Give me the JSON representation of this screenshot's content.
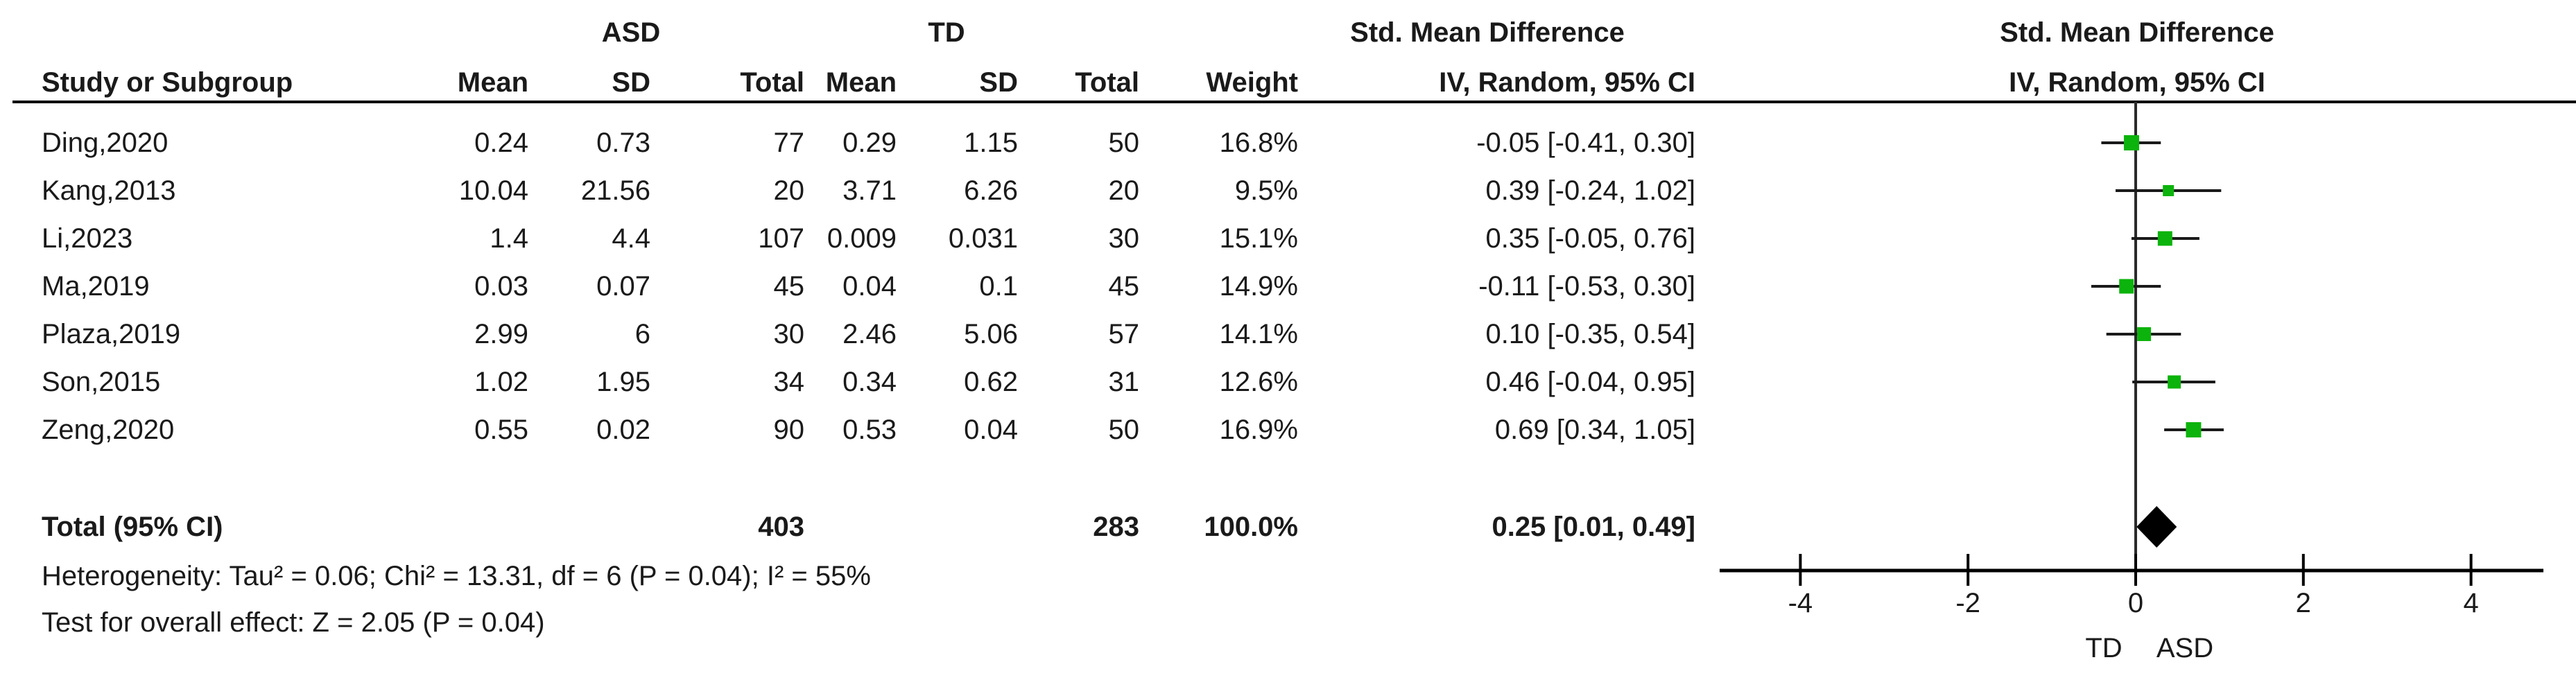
{
  "meta": {
    "background": "#ffffff",
    "text_color": "#1a1a1a",
    "marker_green": "#0cb30c",
    "line_black": "#1a1a1a"
  },
  "header": {
    "study_col": "Study or Subgroup",
    "group1_label": "ASD",
    "group2_label": "TD",
    "sub_cols": {
      "mean": "Mean",
      "sd": "SD",
      "total": "Total",
      "weight": "Weight"
    },
    "effect_col_title": "Std. Mean Difference",
    "effect_col_sub": "IV, Random, 95% CI",
    "plot_col_title": "Std. Mean Difference",
    "plot_col_sub": "IV, Random, 95% CI"
  },
  "table": {
    "rows": [
      {
        "study": "Ding,2020",
        "mean1": "0.24",
        "sd1": "0.73",
        "total1": "77",
        "mean2": "0.29",
        "sd2": "1.15",
        "total2": "50",
        "weight": "16.8%",
        "ci": "-0.05 [-0.41, 0.30]"
      },
      {
        "study": "Kang,2013",
        "mean1": "10.04",
        "sd1": "21.56",
        "total1": "20",
        "mean2": "3.71",
        "sd2": "6.26",
        "total2": "20",
        "weight": "9.5%",
        "ci": "0.39 [-0.24, 1.02]"
      },
      {
        "study": "Li,2023",
        "mean1": "1.4",
        "sd1": "4.4",
        "total1": "107",
        "mean2": "0.009",
        "sd2": "0.031",
        "total2": "30",
        "weight": "15.1%",
        "ci": "0.35 [-0.05, 0.76]"
      },
      {
        "study": "Ma,2019",
        "mean1": "0.03",
        "sd1": "0.07",
        "total1": "45",
        "mean2": "0.04",
        "sd2": "0.1",
        "total2": "45",
        "weight": "14.9%",
        "ci": "-0.11 [-0.53, 0.30]"
      },
      {
        "study": "Plaza,2019",
        "mean1": "2.99",
        "sd1": "6",
        "total1": "30",
        "mean2": "2.46",
        "sd2": "5.06",
        "total2": "57",
        "weight": "14.1%",
        "ci": "0.10 [-0.35, 0.54]"
      },
      {
        "study": "Son,2015",
        "mean1": "1.02",
        "sd1": "1.95",
        "total1": "34",
        "mean2": "0.34",
        "sd2": "0.62",
        "total2": "31",
        "weight": "12.6%",
        "ci": "0.46 [-0.04, 0.95]"
      },
      {
        "study": "Zeng,2020",
        "mean1": "0.55",
        "sd1": "0.02",
        "total1": "90",
        "mean2": "0.53",
        "sd2": "0.04",
        "total2": "50",
        "weight": "16.9%",
        "ci": "0.69 [0.34, 1.05]"
      }
    ],
    "total_row": {
      "label": "Total (95% CI)",
      "total1": "403",
      "total2": "283",
      "weight": "100.0%",
      "ci": "0.25 [0.01, 0.49]"
    }
  },
  "footnotes": {
    "heterogeneity": "Heterogeneity: Tau² = 0.06; Chi² = 13.31, df = 6 (P = 0.04); I² = 55%",
    "overall_effect": "Test for overall effect: Z = 2.05 (P = 0.04)"
  },
  "chart_data": {
    "type": "forest",
    "effect_measure": "Std. Mean Difference",
    "model": "IV, Random, 95% CI",
    "studies": [
      {
        "label": "Ding,2020",
        "est": -0.05,
        "lo": -0.41,
        "hi": 0.3,
        "weight_pct": 16.8
      },
      {
        "label": "Kang,2013",
        "est": 0.39,
        "lo": -0.24,
        "hi": 1.02,
        "weight_pct": 9.5
      },
      {
        "label": "Li,2023",
        "est": 0.35,
        "lo": -0.05,
        "hi": 0.76,
        "weight_pct": 15.1
      },
      {
        "label": "Ma,2019",
        "est": -0.11,
        "lo": -0.53,
        "hi": 0.3,
        "weight_pct": 14.9
      },
      {
        "label": "Plaza,2019",
        "est": 0.1,
        "lo": -0.35,
        "hi": 0.54,
        "weight_pct": 14.1
      },
      {
        "label": "Son,2015",
        "est": 0.46,
        "lo": -0.04,
        "hi": 0.95,
        "weight_pct": 12.6
      },
      {
        "label": "Zeng,2020",
        "est": 0.69,
        "lo": 0.34,
        "hi": 1.05,
        "weight_pct": 16.9
      }
    ],
    "total": {
      "label": "Total (95% CI)",
      "est": 0.25,
      "lo": 0.01,
      "hi": 0.49,
      "weight_pct": 100.0
    },
    "x_ticks": [
      -4,
      -2,
      0,
      2,
      4
    ],
    "xlim": [
      -4.98,
      4.86
    ],
    "favours_left": "TD",
    "favours_right": "ASD",
    "grid": false,
    "marker_color": "#0cb30c",
    "diamond_color": "#000000"
  }
}
